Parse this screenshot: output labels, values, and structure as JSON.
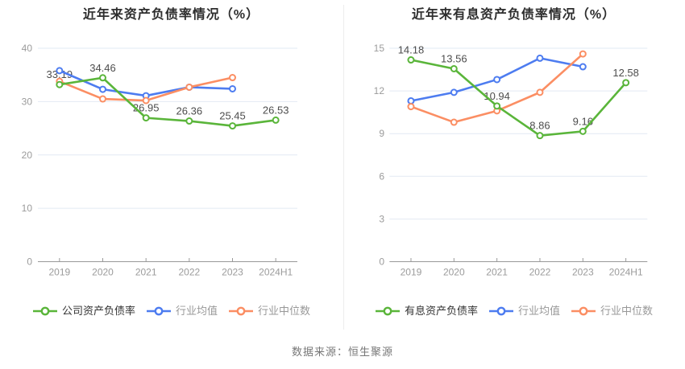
{
  "page": {
    "background": "#ffffff",
    "source_note": "数据来源：恒生聚源",
    "divider_color": "#ededed"
  },
  "palette": {
    "company": "#5ab53a",
    "industry_avg": "#4d7cf0",
    "industry_median": "#fb8e63",
    "grid": "#e2e9f3",
    "axis": "#999999",
    "tick_label": "#9b9b9b",
    "value_label": "#4d4d4d",
    "title": "#2e2e2e",
    "legend_active": "#333333",
    "legend_muted": "#999999"
  },
  "chart_data": [
    {
      "type": "line",
      "title": "近年来资产负债率情况（%）",
      "categories": [
        "2019",
        "2020",
        "2021",
        "2022",
        "2023",
        "2024H1"
      ],
      "ylim": [
        0,
        40
      ],
      "y_ticks": [
        0,
        10,
        20,
        30,
        40
      ],
      "grid": true,
      "legend_position": "bottom",
      "series": [
        {
          "name": "公司资产负债率",
          "color_key": "company",
          "show_labels": true,
          "values": [
            33.19,
            34.46,
            26.95,
            26.36,
            25.45,
            26.53
          ]
        },
        {
          "name": "行业均值",
          "color_key": "industry_avg",
          "show_labels": false,
          "values": [
            35.8,
            32.3,
            31.1,
            32.7,
            32.4
          ]
        },
        {
          "name": "行业中位数",
          "color_key": "industry_median",
          "show_labels": false,
          "values": [
            33.8,
            30.5,
            30.2,
            32.7,
            34.5
          ]
        }
      ]
    },
    {
      "type": "line",
      "title": "近年来有息资产负债率情况（%）",
      "categories": [
        "2019",
        "2020",
        "2021",
        "2022",
        "2023",
        "2024H1"
      ],
      "ylim": [
        0,
        15
      ],
      "y_ticks": [
        0,
        3,
        6,
        9,
        12,
        15
      ],
      "grid": true,
      "legend_position": "bottom",
      "series": [
        {
          "name": "有息资产负债率",
          "color_key": "company",
          "show_labels": true,
          "values": [
            14.18,
            13.56,
            10.94,
            8.86,
            9.16,
            12.58
          ]
        },
        {
          "name": "行业均值",
          "color_key": "industry_avg",
          "show_labels": false,
          "values": [
            11.3,
            11.9,
            12.8,
            14.3,
            13.7
          ]
        },
        {
          "name": "行业中位数",
          "color_key": "industry_median",
          "show_labels": false,
          "values": [
            10.9,
            9.8,
            10.6,
            11.9,
            14.6
          ]
        }
      ]
    }
  ]
}
